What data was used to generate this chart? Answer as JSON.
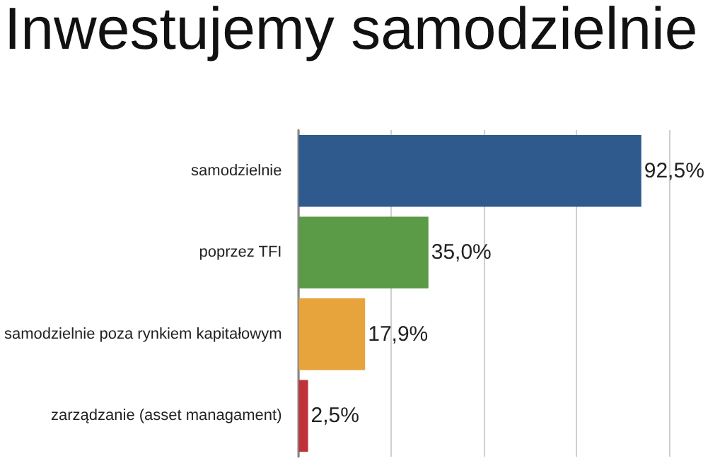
{
  "chart_data": {
    "type": "bar",
    "orientation": "horizontal",
    "title": "Inwestujemy samodzielnie",
    "categories": [
      "samodzielnie",
      "poprzez TFI",
      "samodzielnie poza rynkiem kapitałowym",
      "zarządzanie (asset managament)"
    ],
    "values": [
      92.5,
      35.0,
      17.9,
      2.5
    ],
    "colors": [
      "#2e5a8e",
      "#5b9a46",
      "#e8a43c",
      "#c0323a"
    ],
    "value_labels": [
      "92,5%",
      "35,0%",
      "17,9%",
      "2,5%"
    ],
    "xlim": [
      0,
      100
    ],
    "xticks": [
      {
        "value": 0,
        "label": null
      },
      {
        "value": 25,
        "label": null
      },
      {
        "value": 50,
        "label": null
      },
      {
        "value": 75,
        "label": null
      },
      {
        "value": 100,
        "label": null
      }
    ],
    "grid": "x",
    "tick_labels": "y"
  }
}
